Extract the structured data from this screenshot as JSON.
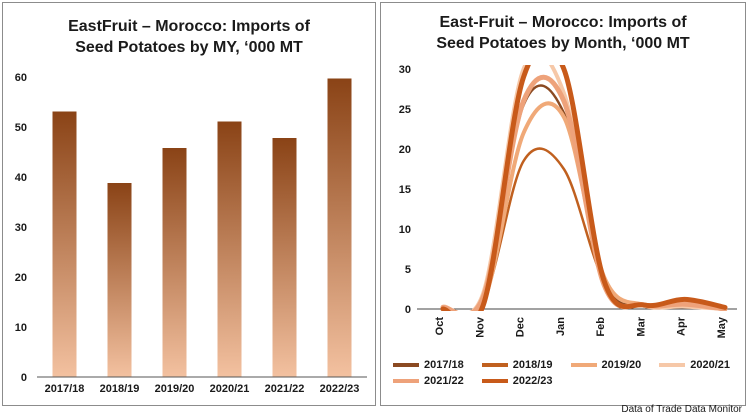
{
  "chart_data": [
    {
      "type": "bar",
      "title": "EastFruit – Morocco: Imports of\nSeed Potatoes by MY, ‘000 MT",
      "categories": [
        "2017/18",
        "2018/19",
        "2019/20",
        "2020/21",
        "2021/22",
        "2022/23"
      ],
      "values": [
        53.1,
        38.8,
        45.8,
        51.1,
        47.8,
        59.7
      ],
      "ylim": [
        0,
        60
      ],
      "yticks": [
        0,
        10,
        20,
        30,
        40,
        50,
        60
      ],
      "grid": false,
      "colors": {
        "bar_top": "#8a4316",
        "bar_bottom": "#f3c1a0"
      }
    },
    {
      "type": "line",
      "title": "East-Fruit – Morocco: Imports of\nSeed Potatoes by Month, ‘000 MT",
      "categories": [
        "Oct",
        "Nov",
        "Dec",
        "Jan",
        "Feb",
        "Mar",
        "Apr",
        "May"
      ],
      "ylim": [
        0,
        30
      ],
      "yticks": [
        0,
        5,
        10,
        15,
        20,
        25,
        30
      ],
      "grid": false,
      "legend_position": "bottom",
      "series": [
        {
          "name": "2017/18",
          "color": "#8b4a22",
          "width": 2.5,
          "values": [
            0,
            0.5,
            25.5,
            24.5,
            3.5,
            0.3,
            0.3,
            0
          ]
        },
        {
          "name": "2018/19",
          "color": "#c0601f",
          "width": 2.5,
          "values": [
            0,
            1,
            18.5,
            17.5,
            3.5,
            0.3,
            0.5,
            0
          ]
        },
        {
          "name": "2019/20",
          "color": "#f0a978",
          "width": 4,
          "values": [
            0,
            0.8,
            22,
            24,
            4,
            0.5,
            0.4,
            0
          ]
        },
        {
          "name": "2020/21",
          "color": "#f6c8a8",
          "width": 4,
          "values": [
            0.3,
            2,
            30,
            27,
            3,
            0.4,
            0.3,
            0
          ]
        },
        {
          "name": "2021/22",
          "color": "#eea27a",
          "width": 5,
          "values": [
            0.2,
            1.5,
            26,
            26,
            3,
            0.5,
            0.6,
            0
          ]
        },
        {
          "name": "2022/23",
          "color": "#c85a1a",
          "width": 5,
          "values": [
            0,
            0.5,
            29,
            30,
            3.5,
            0.5,
            1.2,
            0.2
          ]
        }
      ]
    }
  ],
  "source_note": "Data of Trade Data Monitor"
}
